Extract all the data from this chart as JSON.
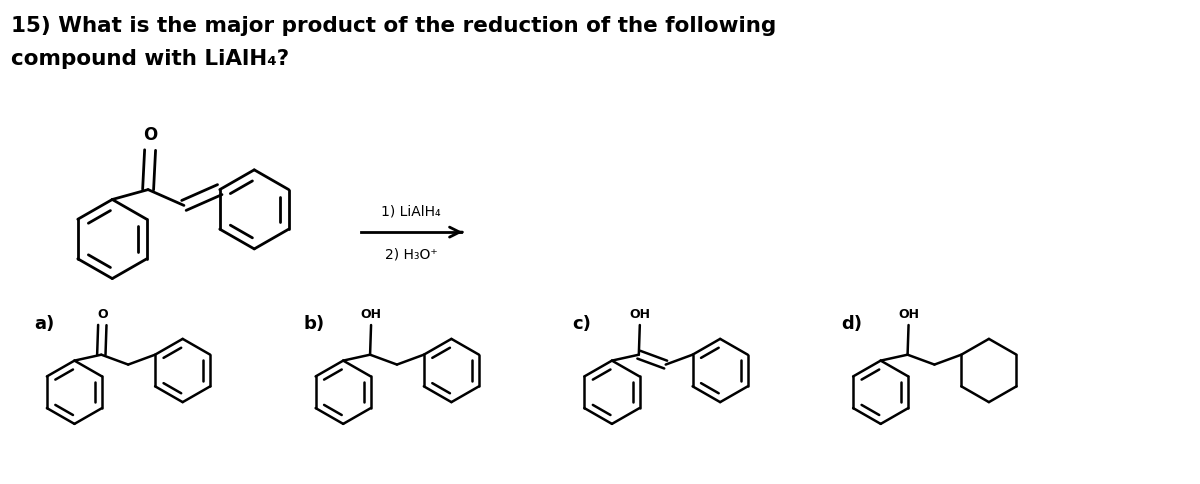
{
  "title_line1": "15) What is the major product of the reduction of the following",
  "title_line2": "compound with LiAlH₄?",
  "reagent_line1": "1) LiAlH₄",
  "reagent_line2": "2) H₃O⁺",
  "bg_color": "#ffffff",
  "bond_color": "#000000",
  "bond_lw": 2.2,
  "title_fontsize": 17,
  "label_fontsize": 16
}
